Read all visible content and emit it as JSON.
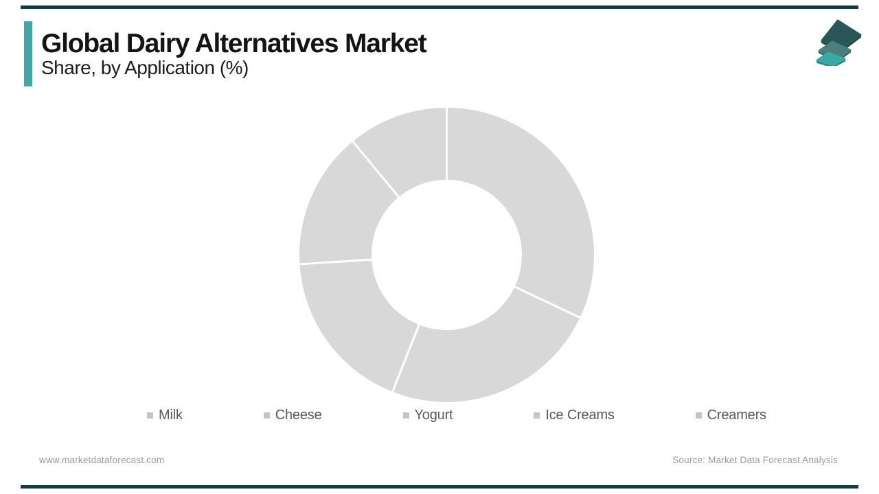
{
  "header": {
    "title": "Global Dairy Alternatives Market",
    "subtitle": "Share, by Application (%)"
  },
  "chart_data": {
    "type": "pie",
    "subtype": "donut",
    "title": "Global Dairy Alternatives Market Share, by Application (%)",
    "categories": [
      "Milk",
      "Cheese",
      "Yogurt",
      "Ice Creams",
      "Creamers"
    ],
    "values": [
      32,
      24,
      18,
      15,
      11
    ],
    "unit": "%",
    "start_angle_deg": 0,
    "direction": "clockwise",
    "donut_hole_ratio": 0.5,
    "slice_color": "#d8d8d8",
    "slice_border_color": "#ffffff",
    "legend_position": "bottom",
    "data_labels_shown": false
  },
  "legend": {
    "marker_color": "#c4c4c4",
    "text_color": "#595959"
  },
  "footer": {
    "website": "www.marketdataforecast.com",
    "source": "Source: Market Data Forecast Analysis"
  },
  "theme": {
    "accent_color": "#44a7a5",
    "frame_bar_color": "#123d3e",
    "title_color": "#141414",
    "footer_text_color": "#9a9a9a",
    "logo_layer_colors": [
      "#2b5658",
      "#4a7f7d",
      "#3aa8a3"
    ],
    "logo_edge_colors": [
      "#1d4143",
      "#355f5d",
      "#2a8781"
    ]
  }
}
